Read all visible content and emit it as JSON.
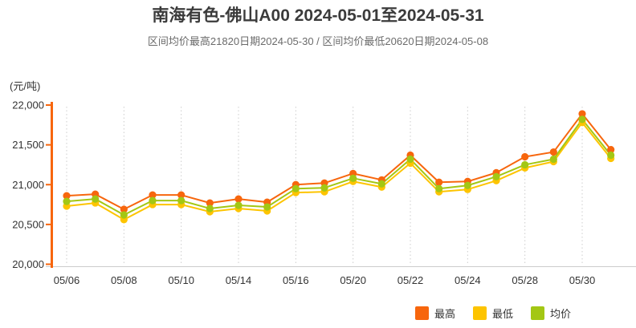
{
  "header": {
    "title": "南海有色-佛山A00 2024-05-01至2024-05-31",
    "subtitle": "区间均价最高21820日期2024-05-30 / 区间均价最低20620日期2024-05-08"
  },
  "chart_data": {
    "type": "line",
    "title": "南海有色-佛山A00 2024-05-01至2024-05-31",
    "subtitle": "区间均价最高21820日期2024-05-30 / 区间均价最低20620日期2024-05-08",
    "unit_label": "(元/吨)",
    "ylabel": "元/吨",
    "xlabel": "",
    "ylim": [
      20000,
      22000
    ],
    "y_ticks": [
      22000,
      21500,
      21000,
      20500,
      20000
    ],
    "grid": "vertical-dotted",
    "legend_position": "bottom-right",
    "categories": [
      "05/06",
      "05/07",
      "05/08",
      "05/09",
      "05/10",
      "05/13",
      "05/14",
      "05/15",
      "05/16",
      "05/17",
      "05/20",
      "05/21",
      "05/22",
      "05/23",
      "05/24",
      "05/27",
      "05/28",
      "05/29",
      "05/30",
      "05/31"
    ],
    "x_tick_labels": [
      "05/06",
      "05/08",
      "05/10",
      "05/14",
      "05/16",
      "05/20",
      "05/22",
      "05/24",
      "05/28",
      "05/30"
    ],
    "series": [
      {
        "name": "最高",
        "color": "#f7660d",
        "values": [
          20860,
          20880,
          20690,
          20870,
          20870,
          20770,
          20820,
          20780,
          21000,
          21020,
          21140,
          21060,
          21370,
          21030,
          21040,
          21150,
          21350,
          21410,
          21890,
          21440
        ]
      },
      {
        "name": "最低",
        "color": "#fdc400",
        "values": [
          20730,
          20770,
          20560,
          20750,
          20750,
          20660,
          20700,
          20670,
          20900,
          20910,
          21040,
          20970,
          21270,
          20910,
          20940,
          21050,
          21210,
          21290,
          21780,
          21330
        ]
      },
      {
        "name": "均价",
        "color": "#a3c714",
        "values": [
          20790,
          20820,
          20620,
          20800,
          20800,
          20700,
          20740,
          20720,
          20950,
          20960,
          21080,
          21010,
          21320,
          20950,
          20990,
          21100,
          21250,
          21320,
          21820,
          21370
        ]
      }
    ],
    "colors": {
      "y_axis": "#f7660d",
      "x_axis": "#cccccc",
      "gridline": "#cccccc",
      "tick_text": "#333333"
    }
  },
  "legend": {
    "items": [
      {
        "label": "最高",
        "color": "#f7660d"
      },
      {
        "label": "最低",
        "color": "#fdc400"
      },
      {
        "label": "均价",
        "color": "#a3c714"
      }
    ]
  }
}
